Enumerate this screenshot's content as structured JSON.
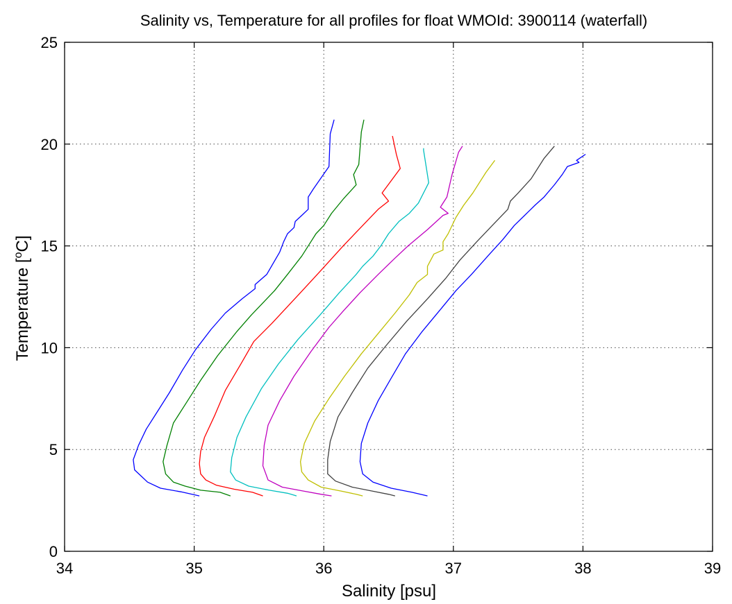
{
  "chart_data": {
    "type": "line",
    "title": "Salinity vs, Temperature for all profiles for float WMOId: 3900114 (waterfall)",
    "xlabel": "Salinity [psu]",
    "ylabel_main": "Temperature [",
    "ylabel_sup": "o",
    "ylabel_tail": "C]",
    "xlim": [
      34,
      39
    ],
    "ylim": [
      0,
      25
    ],
    "xticks": [
      "34",
      "35",
      "36",
      "37",
      "38",
      "39"
    ],
    "yticks": [
      "0",
      "5",
      "10",
      "15",
      "20",
      "25"
    ],
    "grid": true,
    "series": [
      {
        "color": "#0000ff",
        "points": [
          [
            36.08,
            21.2
          ],
          [
            36.05,
            20.5
          ],
          [
            36.04,
            18.9
          ],
          [
            35.92,
            17.8
          ],
          [
            35.88,
            17.4
          ],
          [
            35.88,
            16.8
          ],
          [
            35.83,
            16.5
          ],
          [
            35.78,
            16.2
          ],
          [
            35.77,
            15.9
          ],
          [
            35.72,
            15.6
          ],
          [
            35.69,
            15.2
          ],
          [
            35.66,
            14.7
          ],
          [
            35.56,
            13.6
          ],
          [
            35.47,
            13.1
          ],
          [
            35.47,
            12.9
          ],
          [
            35.37,
            12.4
          ],
          [
            35.24,
            11.7
          ],
          [
            35.13,
            10.9
          ],
          [
            35.01,
            9.9
          ],
          [
            34.91,
            8.9
          ],
          [
            34.81,
            7.8
          ],
          [
            34.71,
            6.8
          ],
          [
            34.63,
            6.0
          ],
          [
            34.57,
            5.2
          ],
          [
            34.53,
            4.5
          ],
          [
            34.54,
            4.0
          ],
          [
            34.59,
            3.7
          ],
          [
            34.64,
            3.4
          ],
          [
            34.74,
            3.1
          ],
          [
            34.9,
            2.92
          ],
          [
            35.04,
            2.72
          ]
        ]
      },
      {
        "color": "#008000",
        "points": [
          [
            36.31,
            21.2
          ],
          [
            36.29,
            20.6
          ],
          [
            36.27,
            19.0
          ],
          [
            36.23,
            18.5
          ],
          [
            36.25,
            18.0
          ],
          [
            36.15,
            17.3
          ],
          [
            36.06,
            16.6
          ],
          [
            36.0,
            16.0
          ],
          [
            35.94,
            15.6
          ],
          [
            35.89,
            15.1
          ],
          [
            35.83,
            14.5
          ],
          [
            35.72,
            13.6
          ],
          [
            35.62,
            12.8
          ],
          [
            35.44,
            11.6
          ],
          [
            35.33,
            10.8
          ],
          [
            35.18,
            9.6
          ],
          [
            35.05,
            8.4
          ],
          [
            34.95,
            7.4
          ],
          [
            34.84,
            6.3
          ],
          [
            34.79,
            5.2
          ],
          [
            34.76,
            4.4
          ],
          [
            34.78,
            3.8
          ],
          [
            34.84,
            3.4
          ],
          [
            34.93,
            3.2
          ],
          [
            35.05,
            3.0
          ],
          [
            35.2,
            2.9
          ],
          [
            35.28,
            2.72
          ]
        ]
      },
      {
        "color": "#ff0000",
        "points": [
          [
            36.53,
            20.4
          ],
          [
            36.56,
            19.5
          ],
          [
            36.59,
            18.8
          ],
          [
            36.45,
            17.6
          ],
          [
            36.5,
            17.2
          ],
          [
            36.42,
            16.8
          ],
          [
            36.3,
            16.0
          ],
          [
            36.15,
            15.0
          ],
          [
            36.05,
            14.3
          ],
          [
            35.95,
            13.6
          ],
          [
            35.82,
            12.7
          ],
          [
            35.6,
            11.2
          ],
          [
            35.46,
            10.3
          ],
          [
            35.36,
            9.2
          ],
          [
            35.24,
            7.9
          ],
          [
            35.16,
            6.7
          ],
          [
            35.08,
            5.6
          ],
          [
            35.05,
            4.9
          ],
          [
            35.04,
            4.3
          ],
          [
            35.05,
            3.8
          ],
          [
            35.09,
            3.5
          ],
          [
            35.17,
            3.25
          ],
          [
            35.31,
            3.05
          ],
          [
            35.45,
            2.9
          ],
          [
            35.53,
            2.72
          ]
        ]
      },
      {
        "color": "#00bfbf",
        "points": [
          [
            36.77,
            19.8
          ],
          [
            36.77,
            19.7
          ],
          [
            36.81,
            18.1
          ],
          [
            36.73,
            17.1
          ],
          [
            36.66,
            16.6
          ],
          [
            36.58,
            16.2
          ],
          [
            36.5,
            15.6
          ],
          [
            36.44,
            15.0
          ],
          [
            36.38,
            14.5
          ],
          [
            36.3,
            14.0
          ],
          [
            36.25,
            13.6
          ],
          [
            36.12,
            12.7
          ],
          [
            35.97,
            11.6
          ],
          [
            35.8,
            10.4
          ],
          [
            35.65,
            9.2
          ],
          [
            35.52,
            8.0
          ],
          [
            35.4,
            6.6
          ],
          [
            35.33,
            5.6
          ],
          [
            35.29,
            4.6
          ],
          [
            35.28,
            3.9
          ],
          [
            35.32,
            3.5
          ],
          [
            35.42,
            3.2
          ],
          [
            35.58,
            3.0
          ],
          [
            35.72,
            2.85
          ],
          [
            35.79,
            2.72
          ]
        ]
      },
      {
        "color": "#bf00bf",
        "points": [
          [
            37.07,
            19.9
          ],
          [
            37.04,
            19.6
          ],
          [
            36.99,
            18.5
          ],
          [
            36.95,
            17.4
          ],
          [
            36.9,
            16.9
          ],
          [
            36.96,
            16.6
          ],
          [
            36.92,
            16.5
          ],
          [
            36.8,
            15.8
          ],
          [
            36.65,
            15.0
          ],
          [
            36.55,
            14.4
          ],
          [
            36.42,
            13.6
          ],
          [
            36.28,
            12.7
          ],
          [
            36.15,
            11.8
          ],
          [
            36.04,
            11.0
          ],
          [
            35.9,
            9.8
          ],
          [
            35.77,
            8.6
          ],
          [
            35.66,
            7.4
          ],
          [
            35.57,
            6.2
          ],
          [
            35.54,
            5.2
          ],
          [
            35.53,
            4.2
          ],
          [
            35.57,
            3.5
          ],
          [
            35.68,
            3.15
          ],
          [
            35.85,
            2.95
          ],
          [
            35.98,
            2.8
          ],
          [
            36.06,
            2.72
          ]
        ]
      },
      {
        "color": "#bfbf00",
        "points": [
          [
            37.32,
            19.2
          ],
          [
            37.25,
            18.6
          ],
          [
            37.15,
            17.6
          ],
          [
            37.08,
            17.0
          ],
          [
            37.02,
            16.4
          ],
          [
            36.96,
            15.6
          ],
          [
            36.92,
            15.2
          ],
          [
            36.92,
            14.8
          ],
          [
            36.85,
            14.6
          ],
          [
            36.8,
            14.0
          ],
          [
            36.8,
            13.6
          ],
          [
            36.72,
            13.2
          ],
          [
            36.66,
            12.6
          ],
          [
            36.55,
            11.7
          ],
          [
            36.42,
            10.7
          ],
          [
            36.29,
            9.7
          ],
          [
            36.16,
            8.6
          ],
          [
            36.04,
            7.5
          ],
          [
            35.93,
            6.4
          ],
          [
            35.85,
            5.3
          ],
          [
            35.82,
            4.4
          ],
          [
            35.83,
            3.9
          ],
          [
            35.88,
            3.5
          ],
          [
            35.98,
            3.15
          ],
          [
            36.14,
            2.95
          ],
          [
            36.25,
            2.8
          ],
          [
            36.3,
            2.72
          ]
        ]
      },
      {
        "color": "#404040",
        "points": [
          [
            37.78,
            19.9
          ],
          [
            37.7,
            19.3
          ],
          [
            37.6,
            18.3
          ],
          [
            37.5,
            17.6
          ],
          [
            37.44,
            17.2
          ],
          [
            37.42,
            16.8
          ],
          [
            37.3,
            16.0
          ],
          [
            37.18,
            15.2
          ],
          [
            37.05,
            14.3
          ],
          [
            36.94,
            13.4
          ],
          [
            36.8,
            12.4
          ],
          [
            36.64,
            11.3
          ],
          [
            36.48,
            10.1
          ],
          [
            36.34,
            9.0
          ],
          [
            36.22,
            7.8
          ],
          [
            36.11,
            6.6
          ],
          [
            36.05,
            5.4
          ],
          [
            36.03,
            4.5
          ],
          [
            36.03,
            3.8
          ],
          [
            36.09,
            3.45
          ],
          [
            36.22,
            3.15
          ],
          [
            36.38,
            2.95
          ],
          [
            36.5,
            2.8
          ],
          [
            36.55,
            2.72
          ]
        ]
      },
      {
        "color": "#0000ff",
        "points": [
          [
            38.02,
            19.5
          ],
          [
            37.95,
            19.2
          ],
          [
            37.97,
            19.1
          ],
          [
            37.88,
            18.9
          ],
          [
            37.84,
            18.5
          ],
          [
            37.78,
            18.0
          ],
          [
            37.7,
            17.4
          ],
          [
            37.63,
            17.0
          ],
          [
            37.55,
            16.5
          ],
          [
            37.47,
            16.0
          ],
          [
            37.38,
            15.3
          ],
          [
            37.28,
            14.6
          ],
          [
            37.14,
            13.6
          ],
          [
            37.02,
            12.8
          ],
          [
            36.89,
            11.8
          ],
          [
            36.76,
            10.8
          ],
          [
            36.63,
            9.7
          ],
          [
            36.52,
            8.5
          ],
          [
            36.42,
            7.4
          ],
          [
            36.34,
            6.3
          ],
          [
            36.29,
            5.3
          ],
          [
            36.28,
            4.4
          ],
          [
            36.3,
            3.8
          ],
          [
            36.38,
            3.4
          ],
          [
            36.52,
            3.1
          ],
          [
            36.68,
            2.9
          ],
          [
            36.8,
            2.72
          ]
        ]
      }
    ]
  }
}
